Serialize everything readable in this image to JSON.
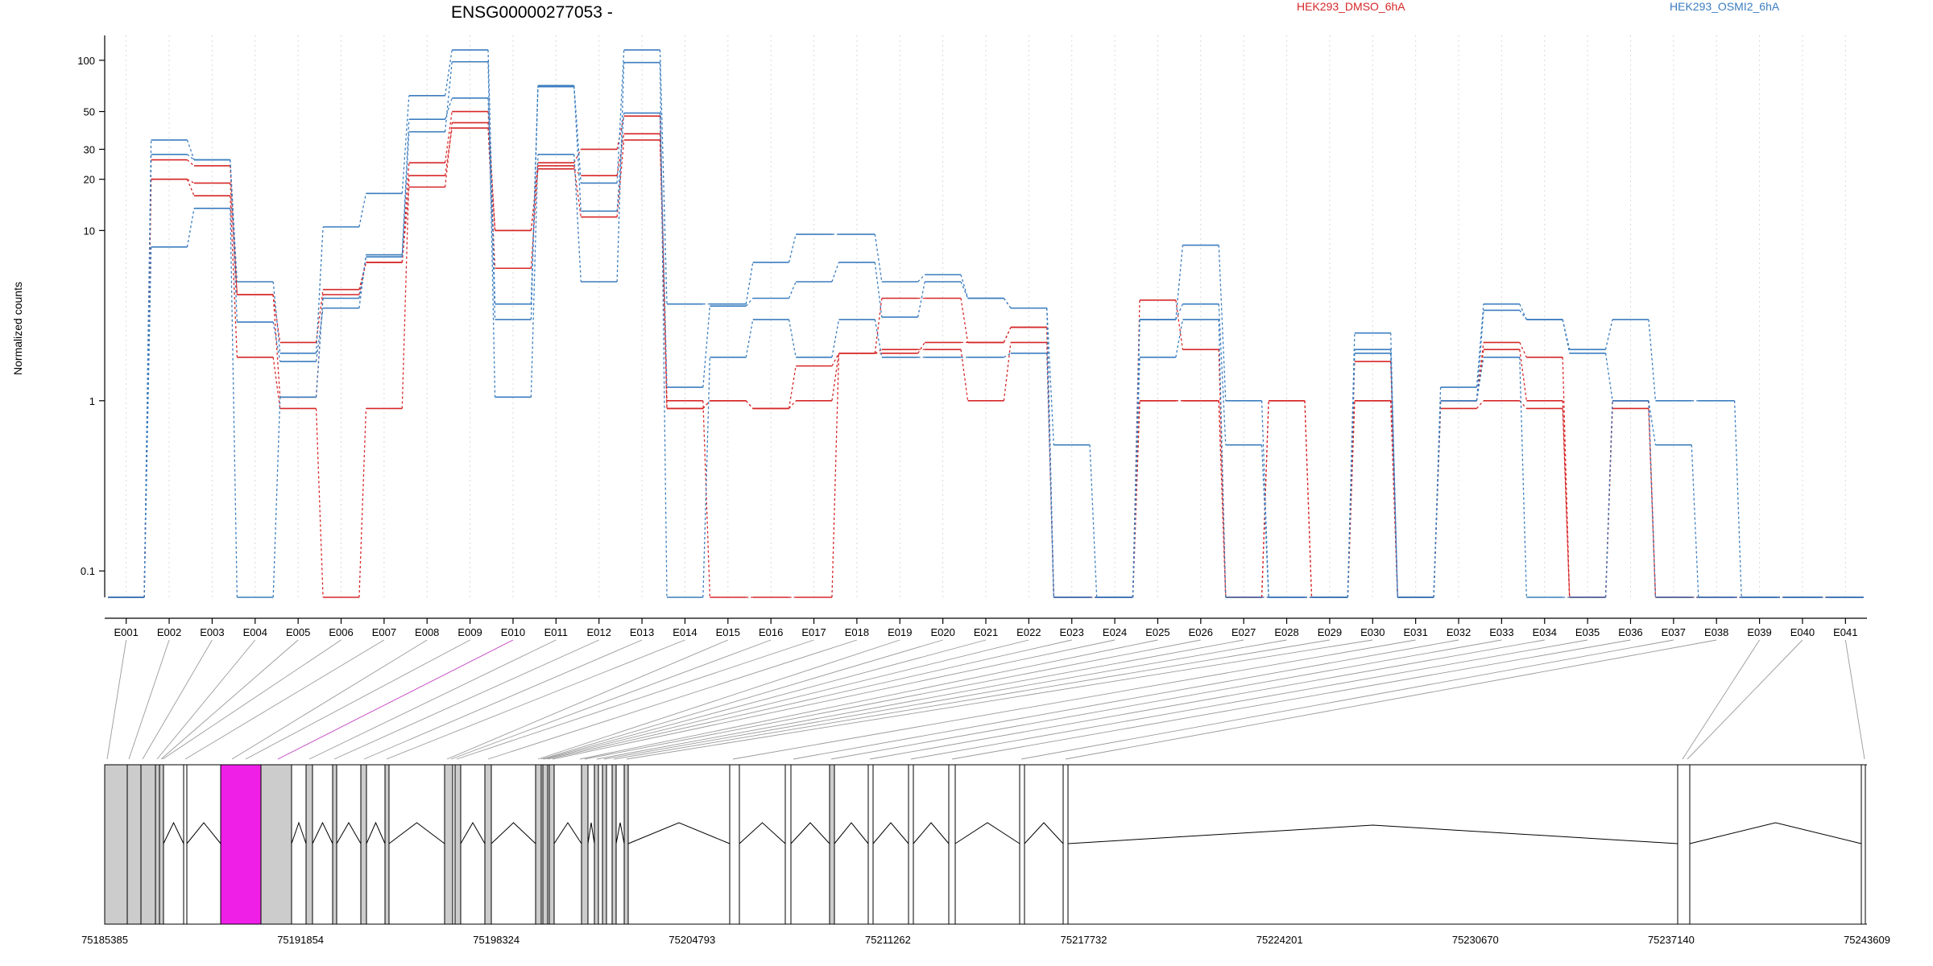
{
  "chart_data": {
    "type": "line",
    "title": "ENSG00000277053 -",
    "ylabel": "Normalized counts",
    "xlabel": "",
    "y_scale": "log",
    "ylim": [
      0.07,
      140
    ],
    "y_ticks": [
      0.1,
      1,
      10,
      20,
      30,
      50,
      100
    ],
    "y_tick_labels": [
      "0.1",
      "1",
      "10",
      "20",
      "30",
      "50",
      "100"
    ],
    "grid": "vertical dotted at exon centers",
    "legend_placement": "top",
    "categories": [
      "E001",
      "E002",
      "E003",
      "E004",
      "E005",
      "E006",
      "E007",
      "E008",
      "E009",
      "E010",
      "E011",
      "E012",
      "E013",
      "E014",
      "E015",
      "E016",
      "E017",
      "E018",
      "E019",
      "E020",
      "E021",
      "E022",
      "E023",
      "E024",
      "E025",
      "E026",
      "E027",
      "E028",
      "E029",
      "E030",
      "E031",
      "E032",
      "E033",
      "E034",
      "E035",
      "E036",
      "E037",
      "E038",
      "E039",
      "E040",
      "E041"
    ],
    "legend": [
      {
        "name": "HEK293_DMSO_6hA",
        "color": "#d62728"
      },
      {
        "name": "HEK293_OSMI2_6hA",
        "color": "#3b7dbf"
      }
    ],
    "series": [
      {
        "group": 0,
        "values": [
          0.07,
          26,
          24,
          4.2,
          2.2,
          4.5,
          6.5,
          25,
          50,
          10,
          25,
          30,
          47,
          0.9,
          1,
          0.9,
          1.6,
          1.9,
          1.9,
          2.2,
          2.2,
          2.7,
          0.07,
          0.07,
          3.9,
          2,
          0.07,
          1,
          0.07,
          1.7,
          0.07,
          1,
          2.2,
          1.8,
          0.07,
          1,
          0.07,
          0.07,
          0.07,
          0.07,
          0.07
        ]
      },
      {
        "group": 0,
        "values": [
          0.07,
          20,
          19,
          4.2,
          1.05,
          4.2,
          6.5,
          18,
          43,
          10,
          23,
          21,
          37,
          0.9,
          1,
          0.9,
          1,
          1.9,
          4,
          4,
          2.2,
          2.7,
          0.07,
          0.07,
          1,
          1,
          0.07,
          1,
          0.07,
          1,
          0.07,
          1,
          2,
          1,
          0.07,
          0.9,
          0.07,
          0.07,
          0.07,
          0.07,
          0.07
        ]
      },
      {
        "group": 0,
        "values": [
          0.07,
          20,
          16,
          1.8,
          0.9,
          0.07,
          0.9,
          21,
          40,
          6,
          24,
          12,
          34,
          1,
          0.07,
          0.07,
          0.07,
          1.9,
          2,
          2,
          1,
          2.2,
          0.07,
          0.07,
          1,
          1,
          0.07,
          0.07,
          0.07,
          1,
          0.07,
          0.9,
          1,
          0.9,
          0.07,
          1,
          0.07,
          0.07,
          0.07,
          0.07,
          0.07
        ]
      },
      {
        "group": 1,
        "values": [
          0.07,
          34,
          26,
          5,
          1.9,
          10.5,
          16.5,
          62,
          115,
          3.7,
          71,
          19,
          115,
          3.7,
          3.7,
          6.5,
          9.5,
          9.5,
          5,
          5.5,
          4,
          3.5,
          0.55,
          0.07,
          3,
          8.2,
          1,
          0.07,
          0.07,
          2.5,
          0.07,
          1.2,
          3.7,
          3,
          2,
          3,
          1,
          1,
          0.07,
          0.07,
          0.07
        ]
      },
      {
        "group": 1,
        "values": [
          0.07,
          28,
          26,
          2.9,
          1.7,
          3.5,
          7.2,
          45,
          60,
          3,
          70,
          13,
          49,
          1.2,
          3.6,
          4,
          5,
          6.5,
          3.1,
          5,
          4,
          3.5,
          0.07,
          0.07,
          3,
          3.7,
          0.55,
          0.07,
          0.07,
          2,
          0.07,
          1,
          3.4,
          3,
          1.9,
          1,
          0.55,
          0.07,
          0.07,
          0.07,
          0.07
        ]
      },
      {
        "group": 1,
        "values": [
          0.07,
          8,
          13.5,
          0.07,
          1.05,
          4,
          7,
          38,
          98,
          1.05,
          28,
          5,
          97,
          0.07,
          1.8,
          3,
          1.8,
          3,
          1.8,
          1.8,
          1.8,
          1.9,
          0.07,
          0.07,
          1.8,
          3,
          0.07,
          0.07,
          0.07,
          1.9,
          0.07,
          1,
          1.8,
          0.07,
          0.07,
          1,
          0.07,
          0.07,
          0.07,
          0.07,
          0.07
        ]
      }
    ],
    "genomic_coordinate_ticks": [
      "75185385",
      "75191854",
      "75198324",
      "75204793",
      "75211262",
      "75217732",
      "75224201",
      "75230670",
      "75237140",
      "75243609"
    ],
    "highlighted_exon": "E010",
    "highlight_color": "#f01fe8"
  }
}
